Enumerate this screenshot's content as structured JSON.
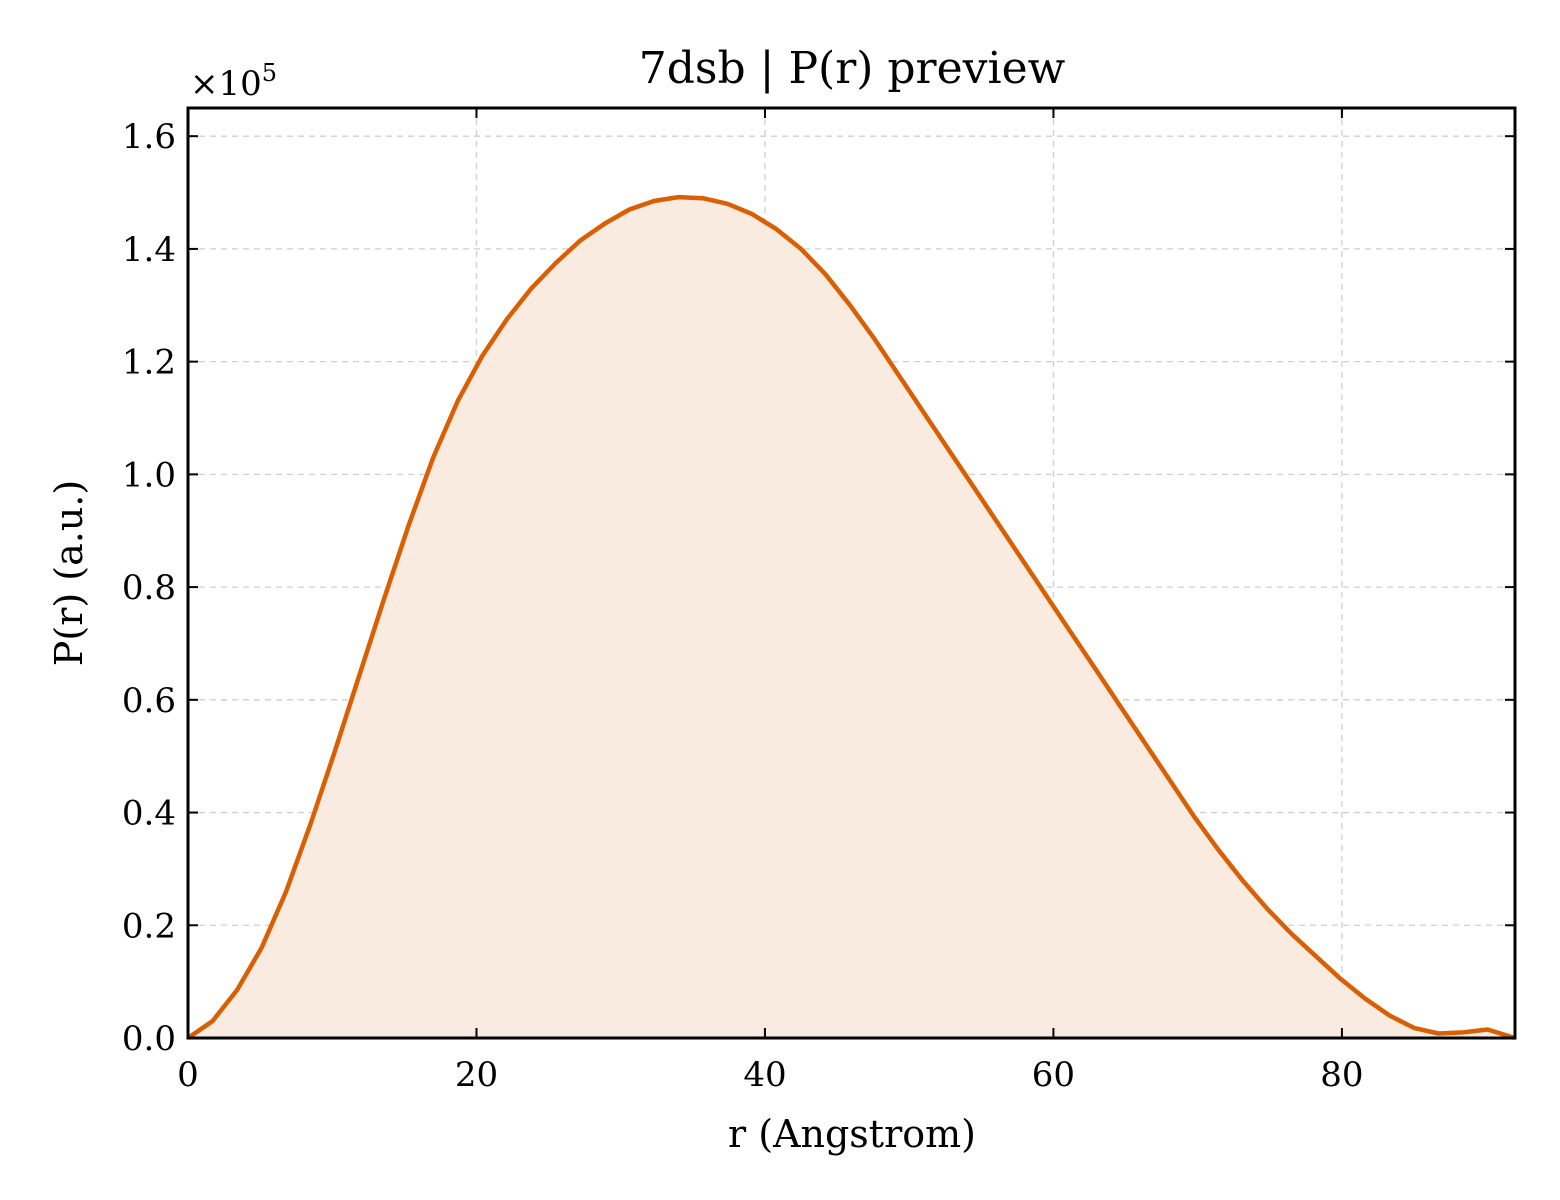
{
  "chart_data": {
    "type": "area",
    "title": "7dsb | P(r) preview",
    "xlabel": "r (Angstrom)",
    "ylabel": "P(r) (a.u.)",
    "y_multiplier": "×10",
    "y_multiplier_exponent": "5",
    "xlim": [
      0,
      92
    ],
    "ylim": [
      0,
      1.65
    ],
    "xticks": [
      0,
      20,
      40,
      60,
      80
    ],
    "xtick_labels": [
      "0",
      "20",
      "40",
      "60",
      "80"
    ],
    "yticks": [
      0,
      0.2,
      0.4,
      0.6,
      0.8,
      1.0,
      1.2,
      1.4,
      1.6
    ],
    "ytick_labels": [
      "0.0",
      "0.2",
      "0.4",
      "0.6",
      "0.8",
      "1.0",
      "1.2",
      "1.4",
      "1.6"
    ],
    "grid": true,
    "legend": false,
    "colors": {
      "line": "#d95f02",
      "fill": "#f9ebe0"
    },
    "series": [
      {
        "x": [
          0,
          1.7,
          3.4,
          5.1,
          6.8,
          8.5,
          10.2,
          11.9,
          13.6,
          15.3,
          17.0,
          18.7,
          20.4,
          22.1,
          23.8,
          25.5,
          27.2,
          28.9,
          30.6,
          32.3,
          34.0,
          35.7,
          37.4,
          39.1,
          40.8,
          42.5,
          44.2,
          45.9,
          47.6,
          49.3,
          51.0,
          52.7,
          54.4,
          56.1,
          57.8,
          59.5,
          61.2,
          62.9,
          64.6,
          66.3,
          68.0,
          69.7,
          71.4,
          73.1,
          74.8,
          76.5,
          78.2,
          79.9,
          81.6,
          83.3,
          85.0,
          86.7,
          88.4,
          90.1,
          92.0
        ],
        "y": [
          0.0,
          0.03,
          0.085,
          0.16,
          0.26,
          0.38,
          0.51,
          0.645,
          0.78,
          0.91,
          1.03,
          1.13,
          1.21,
          1.275,
          1.33,
          1.375,
          1.415,
          1.445,
          1.47,
          1.485,
          1.492,
          1.49,
          1.48,
          1.462,
          1.435,
          1.4,
          1.355,
          1.3,
          1.24,
          1.175,
          1.11,
          1.045,
          0.98,
          0.915,
          0.85,
          0.785,
          0.72,
          0.655,
          0.59,
          0.525,
          0.46,
          0.395,
          0.335,
          0.28,
          0.23,
          0.185,
          0.145,
          0.105,
          0.07,
          0.04,
          0.018,
          0.008,
          0.01,
          0.015,
          0.0
        ]
      }
    ]
  }
}
